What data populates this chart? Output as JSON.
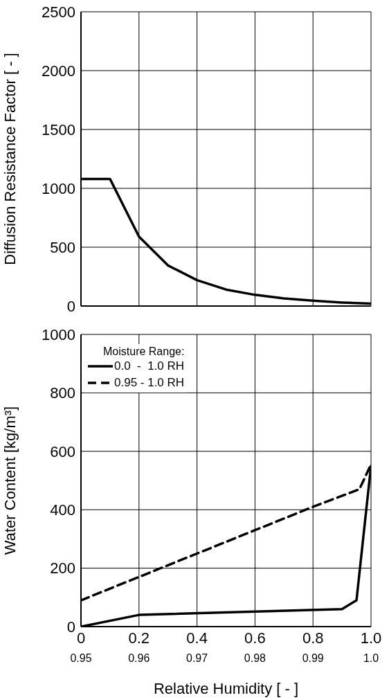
{
  "chart_data": [
    {
      "type": "line",
      "ylabel": "Diffusion Resistance Factor [ - ]",
      "xlim": [
        0,
        1
      ],
      "xticks": [
        0,
        0.2,
        0.4,
        0.6,
        0.8,
        1
      ],
      "ylim": [
        0,
        2500
      ],
      "yticks": [
        0,
        500,
        1000,
        1500,
        2000,
        2500
      ],
      "grid": true,
      "tick_labels": "y",
      "marker": "none",
      "line_style": "solid",
      "series": [
        {
          "color": "#000000",
          "x": [
            0,
            0.1,
            0.2,
            0.3,
            0.4,
            0.5,
            0.6,
            0.7,
            0.8,
            0.9,
            1.0
          ],
          "values": [
            1080,
            1080,
            590,
            345,
            220,
            140,
            95,
            65,
            45,
            30,
            20
          ]
        }
      ]
    },
    {
      "type": "line",
      "xlabel": "Relative Humidity [ - ]",
      "ylabel": "Water Content [kg/m³]",
      "legend_title": "Moisture Range:",
      "xlim": [
        0,
        1
      ],
      "xticks": [
        0,
        0.2,
        0.4,
        0.6,
        0.8,
        {
          "value": 1,
          "label": "1.0"
        }
      ],
      "x2lim": [
        0.95,
        1
      ],
      "x2ticks": [
        0.95,
        0.96,
        0.97,
        0.98,
        0.99,
        {
          "value": 1,
          "label": "1.0"
        }
      ],
      "ylim": [
        0,
        1000
      ],
      "yticks": [
        0,
        200,
        400,
        600,
        800,
        1000
      ],
      "grid": true,
      "legend": "top left",
      "marker": "none",
      "series": [
        {
          "name": "0.0  -  1.0 RH",
          "color": "#000000",
          "line_style": "solid",
          "x": [
            0,
            0.2,
            0.9,
            0.95,
            1.0
          ],
          "values": [
            0,
            40,
            60,
            90,
            550
          ]
        },
        {
          "name": "0.95 - 1.0 RH",
          "color": "#000000",
          "line_style": "dashed",
          "axis": "x2",
          "x": [
            0.95,
            0.96,
            0.97,
            0.98,
            0.99,
            0.998,
            1.0
          ],
          "values": [
            90,
            170,
            250,
            330,
            410,
            470,
            555
          ]
        }
      ]
    }
  ]
}
